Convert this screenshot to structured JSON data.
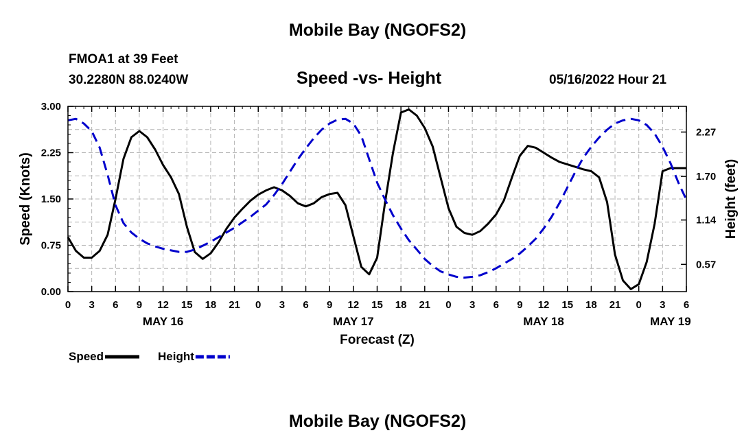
{
  "header": {
    "title": "Mobile Bay (NGOFS2)",
    "station_name": "FMOA1 at 39 Feet",
    "station_coords": "30.2280N  88.0240W",
    "subtitle": "Speed -vs- Height",
    "datetime": "05/16/2022 Hour 21",
    "footer_title": "Mobile Bay (NGOFS2)"
  },
  "chart_data": {
    "type": "line",
    "title": "Speed -vs- Height",
    "xlabel": "Forecast (Z)",
    "ylabel_left": "Speed (Knots)",
    "ylabel_right": "Height (feet)",
    "x_range_hours": [
      0,
      78
    ],
    "x_ticks": [
      {
        "h": 0,
        "label": "0"
      },
      {
        "h": 3,
        "label": "3"
      },
      {
        "h": 6,
        "label": "6"
      },
      {
        "h": 9,
        "label": "9"
      },
      {
        "h": 12,
        "label": "12"
      },
      {
        "h": 15,
        "label": "15"
      },
      {
        "h": 18,
        "label": "18"
      },
      {
        "h": 21,
        "label": "21"
      },
      {
        "h": 24,
        "label": "0"
      },
      {
        "h": 27,
        "label": "3"
      },
      {
        "h": 30,
        "label": "6"
      },
      {
        "h": 33,
        "label": "9"
      },
      {
        "h": 36,
        "label": "12"
      },
      {
        "h": 39,
        "label": "15"
      },
      {
        "h": 42,
        "label": "18"
      },
      {
        "h": 45,
        "label": "21"
      },
      {
        "h": 48,
        "label": "0"
      },
      {
        "h": 51,
        "label": "3"
      },
      {
        "h": 54,
        "label": "6"
      },
      {
        "h": 57,
        "label": "9"
      },
      {
        "h": 60,
        "label": "12"
      },
      {
        "h": 63,
        "label": "15"
      },
      {
        "h": 66,
        "label": "18"
      },
      {
        "h": 69,
        "label": "21"
      },
      {
        "h": 72,
        "label": "0"
      },
      {
        "h": 75,
        "label": "3"
      },
      {
        "h": 78,
        "label": "6"
      }
    ],
    "date_labels": [
      {
        "h": 12,
        "label": "MAY 16"
      },
      {
        "h": 36,
        "label": "MAY 17"
      },
      {
        "h": 60,
        "label": "MAY 18"
      },
      {
        "h": 76,
        "label": "MAY 19"
      }
    ],
    "y_left": {
      "range": [
        0,
        3
      ],
      "ticks": [
        "0.00",
        "0.75",
        "1.50",
        "2.25",
        "3.00"
      ]
    },
    "y_right": {
      "range": [
        0.22,
        2.6
      ],
      "ticks": [
        "0.57",
        "1.14",
        "1.70",
        "2.27"
      ]
    },
    "legend": [
      {
        "name": "Speed",
        "color": "#000000",
        "style": "solid"
      },
      {
        "name": "Height",
        "color": "#0000cc",
        "style": "dashed"
      }
    ],
    "series": [
      {
        "name": "Speed",
        "axis": "left",
        "color": "#000000",
        "style": "solid",
        "x": [
          0,
          1,
          2,
          3,
          4,
          5,
          6,
          7,
          8,
          9,
          10,
          11,
          12,
          13,
          14,
          15,
          16,
          17,
          18,
          19,
          20,
          21,
          22,
          23,
          24,
          25,
          26,
          27,
          28,
          29,
          30,
          31,
          32,
          33,
          34,
          35,
          36,
          37,
          38,
          39,
          40,
          41,
          42,
          43,
          44,
          45,
          46,
          47,
          48,
          49,
          50,
          51,
          52,
          53,
          54,
          55,
          56,
          57,
          58,
          59,
          60,
          61,
          62,
          63,
          64,
          65,
          66,
          67,
          68,
          69,
          70,
          71,
          72,
          73,
          74,
          75,
          76,
          77,
          78
        ],
        "values": [
          0.88,
          0.66,
          0.55,
          0.55,
          0.66,
          0.92,
          1.5,
          2.15,
          2.5,
          2.6,
          2.5,
          2.3,
          2.05,
          1.85,
          1.58,
          1.05,
          0.64,
          0.53,
          0.62,
          0.8,
          1.02,
          1.2,
          1.34,
          1.47,
          1.57,
          1.64,
          1.69,
          1.64,
          1.55,
          1.43,
          1.38,
          1.43,
          1.53,
          1.58,
          1.6,
          1.4,
          0.9,
          0.4,
          0.28,
          0.55,
          1.45,
          2.25,
          2.9,
          2.95,
          2.85,
          2.65,
          2.35,
          1.85,
          1.35,
          1.05,
          0.95,
          0.92,
          0.98,
          1.1,
          1.25,
          1.48,
          1.85,
          2.2,
          2.36,
          2.33,
          2.25,
          2.17,
          2.1,
          2.06,
          2.02,
          1.98,
          1.95,
          1.85,
          1.45,
          0.6,
          0.18,
          0.04,
          0.12,
          0.48,
          1.1,
          1.95,
          2.0,
          2.0,
          2.0
        ]
      },
      {
        "name": "Height",
        "axis": "right",
        "color": "#0000cc",
        "style": "dashed",
        "x": [
          0,
          1,
          2,
          3,
          4,
          5,
          6,
          7,
          8,
          9,
          10,
          11,
          12,
          13,
          14,
          15,
          16,
          17,
          18,
          19,
          20,
          21,
          22,
          23,
          24,
          25,
          26,
          27,
          28,
          29,
          30,
          31,
          32,
          33,
          34,
          35,
          36,
          37,
          38,
          39,
          40,
          41,
          42,
          43,
          44,
          45,
          46,
          47,
          48,
          49,
          50,
          51,
          52,
          53,
          54,
          55,
          56,
          57,
          58,
          59,
          60,
          61,
          62,
          63,
          64,
          65,
          66,
          67,
          68,
          69,
          70,
          71,
          72,
          73,
          74,
          75,
          76,
          77,
          78
        ],
        "values": [
          2.42,
          2.44,
          2.38,
          2.28,
          2.07,
          1.72,
          1.33,
          1.1,
          0.98,
          0.9,
          0.84,
          0.8,
          0.77,
          0.75,
          0.73,
          0.73,
          0.76,
          0.81,
          0.86,
          0.92,
          0.98,
          1.04,
          1.11,
          1.18,
          1.26,
          1.34,
          1.46,
          1.6,
          1.76,
          1.92,
          2.06,
          2.19,
          2.3,
          2.38,
          2.43,
          2.44,
          2.38,
          2.22,
          1.92,
          1.62,
          1.4,
          1.2,
          1.03,
          0.88,
          0.76,
          0.64,
          0.55,
          0.48,
          0.44,
          0.41,
          0.4,
          0.41,
          0.43,
          0.47,
          0.52,
          0.58,
          0.64,
          0.71,
          0.8,
          0.9,
          1.03,
          1.18,
          1.36,
          1.56,
          1.76,
          1.94,
          2.08,
          2.2,
          2.3,
          2.38,
          2.42,
          2.44,
          2.42,
          2.36,
          2.25,
          2.08,
          1.87,
          1.62,
          1.4
        ]
      }
    ]
  }
}
